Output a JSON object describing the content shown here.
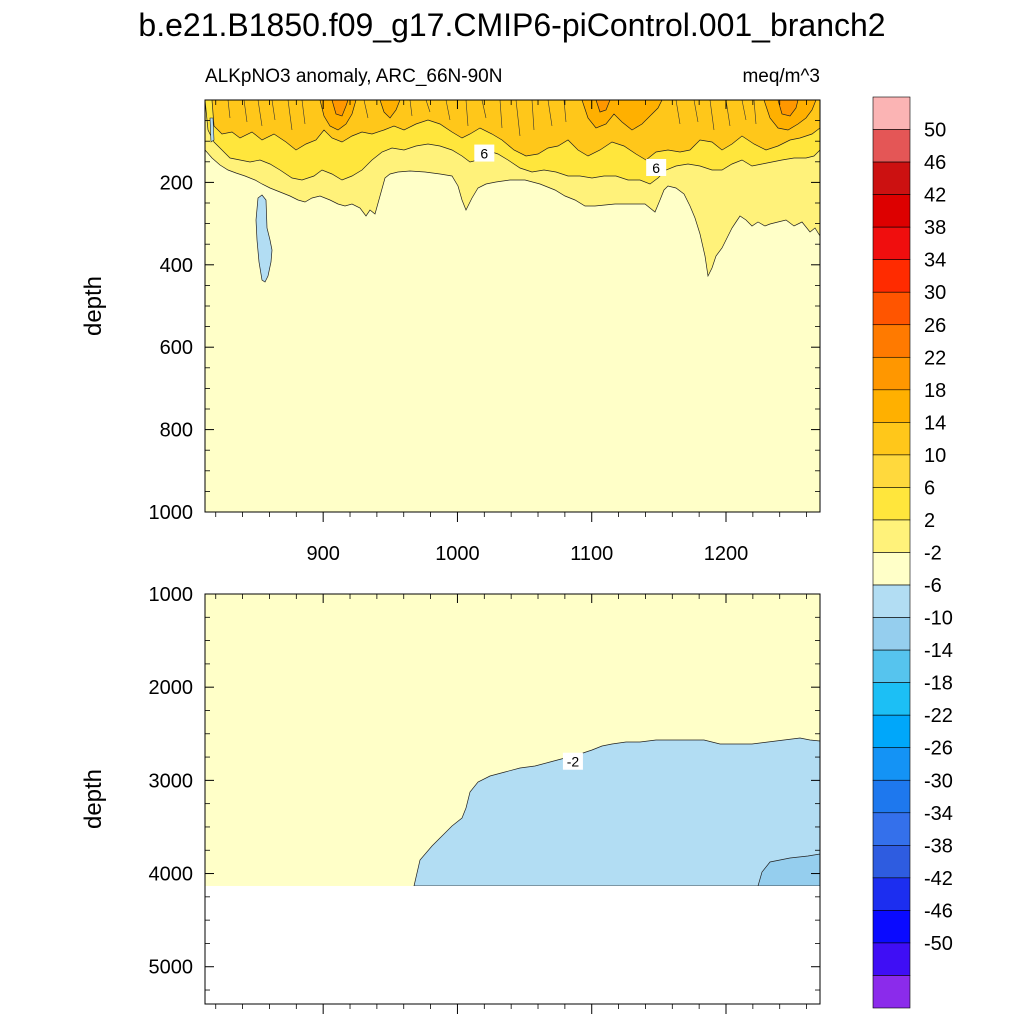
{
  "chart_data": {
    "type": "contour",
    "title": "b.e21.B1850.f09_g17.CMIP6-piControl.001_branch2",
    "subtitle_left": "ALKpNO3 anomaly, ARC_66N-90N",
    "subtitle_right": "meq/m^3",
    "x_range": [
      812,
      1270
    ],
    "x_ticks": [
      "900",
      "1000",
      "1100",
      "1200"
    ],
    "x_tick_values": [
      900,
      1000,
      1100,
      1200
    ],
    "colorbar": {
      "levels": [
        "50",
        "46",
        "42",
        "38",
        "34",
        "30",
        "26",
        "22",
        "18",
        "14",
        "10",
        "6",
        "2",
        "-2",
        "-6",
        "-10",
        "-14",
        "-18",
        "-22",
        "-26",
        "-30",
        "-34",
        "-38",
        "-42",
        "-46",
        "-50"
      ],
      "colors": [
        "#FBB4B4",
        "#E45656",
        "#CC1111",
        "#DD0000",
        "#F00E0E",
        "#FF2B00",
        "#FF5500",
        "#FF7A00",
        "#FF9700",
        "#FFB000",
        "#FFC71A",
        "#FFD93D",
        "#FFE63C",
        "#FFF27A",
        "#FFFFC8",
        "#B2DDF3",
        "#95CEEE",
        "#56C4EE",
        "#1CBFF5",
        "#00A7FA",
        "#1493F5",
        "#1E78EE",
        "#3470EB",
        "#2E5CE0",
        "#1C2EF0",
        "#0A0AFF",
        "#3F0EF5",
        "#8B2BEB"
      ]
    },
    "panels": [
      {
        "name": "upper",
        "ylabel": "depth",
        "y_range": [
          0,
          1000
        ],
        "y_ticks": [
          "200",
          "400",
          "600",
          "800",
          "1000"
        ],
        "y_tick_values": [
          200,
          400,
          600,
          800,
          1000
        ],
        "contour_labels": [
          {
            "text": "6",
            "x": 1020,
            "depth": 130
          },
          {
            "text": "6",
            "x": 1148,
            "depth": 165
          }
        ]
      },
      {
        "name": "lower",
        "ylabel": "depth",
        "y_range": [
          1000,
          5400
        ],
        "y_ticks": [
          "1000",
          "2000",
          "3000",
          "4000",
          "5000"
        ],
        "y_tick_values": [
          1000,
          2000,
          3000,
          4000,
          5000
        ],
        "contour_labels": [
          {
            "text": "-2",
            "x": 1086,
            "depth": 2800
          }
        ]
      }
    ]
  }
}
